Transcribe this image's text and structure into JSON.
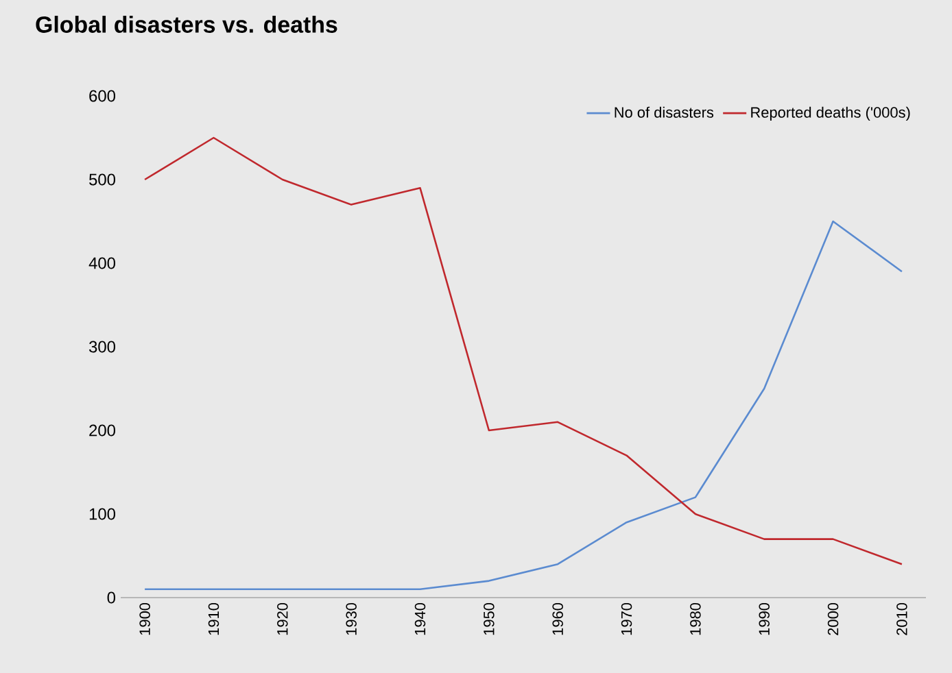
{
  "chart_data": {
    "type": "line",
    "title": "Global disasters vs. deaths",
    "categories": [
      "1900",
      "1910",
      "1920",
      "1930",
      "1940",
      "1950",
      "1960",
      "1970",
      "1980",
      "1990",
      "2000",
      "2010"
    ],
    "series": [
      {
        "name": "No of disasters",
        "color": "#5b8bd0",
        "values": [
          10,
          10,
          10,
          10,
          10,
          20,
          40,
          90,
          120,
          250,
          450,
          390
        ]
      },
      {
        "name": "Reported deaths ('000s)",
        "color": "#c0282d",
        "values": [
          500,
          550,
          500,
          470,
          490,
          200,
          210,
          170,
          100,
          70,
          70,
          40
        ]
      }
    ],
    "ylim": [
      0,
      600
    ],
    "yticks": [
      0,
      100,
      200,
      300,
      400,
      500,
      600
    ],
    "legend": "top right"
  }
}
